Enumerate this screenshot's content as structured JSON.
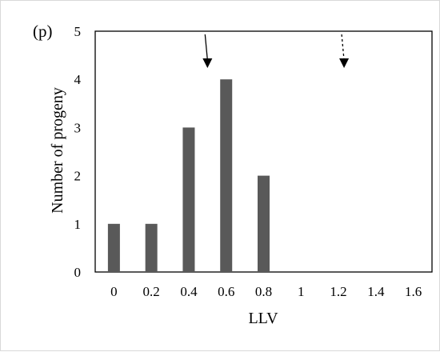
{
  "chart_data": {
    "type": "bar",
    "panel_label": "(p)",
    "title": "",
    "xlabel": "LLV",
    "ylabel": "Number of progeny",
    "categories": [
      "0",
      "0.2",
      "0.4",
      "0.6",
      "0.8",
      "1",
      "1.2",
      "1.4",
      "1.6"
    ],
    "values": [
      1,
      1,
      3,
      4,
      2,
      0,
      0,
      0,
      0
    ],
    "ylim": [
      0,
      5
    ],
    "yticks": [
      "0",
      "1",
      "2",
      "3",
      "4",
      "5"
    ],
    "grid": false,
    "bar_color": "#595959",
    "annotations": [
      {
        "type": "arrow",
        "style": "solid",
        "x_value": 0.5,
        "color": "#000000"
      },
      {
        "type": "arrow",
        "style": "dashed",
        "x_value": 1.23,
        "color": "#000000"
      }
    ]
  }
}
